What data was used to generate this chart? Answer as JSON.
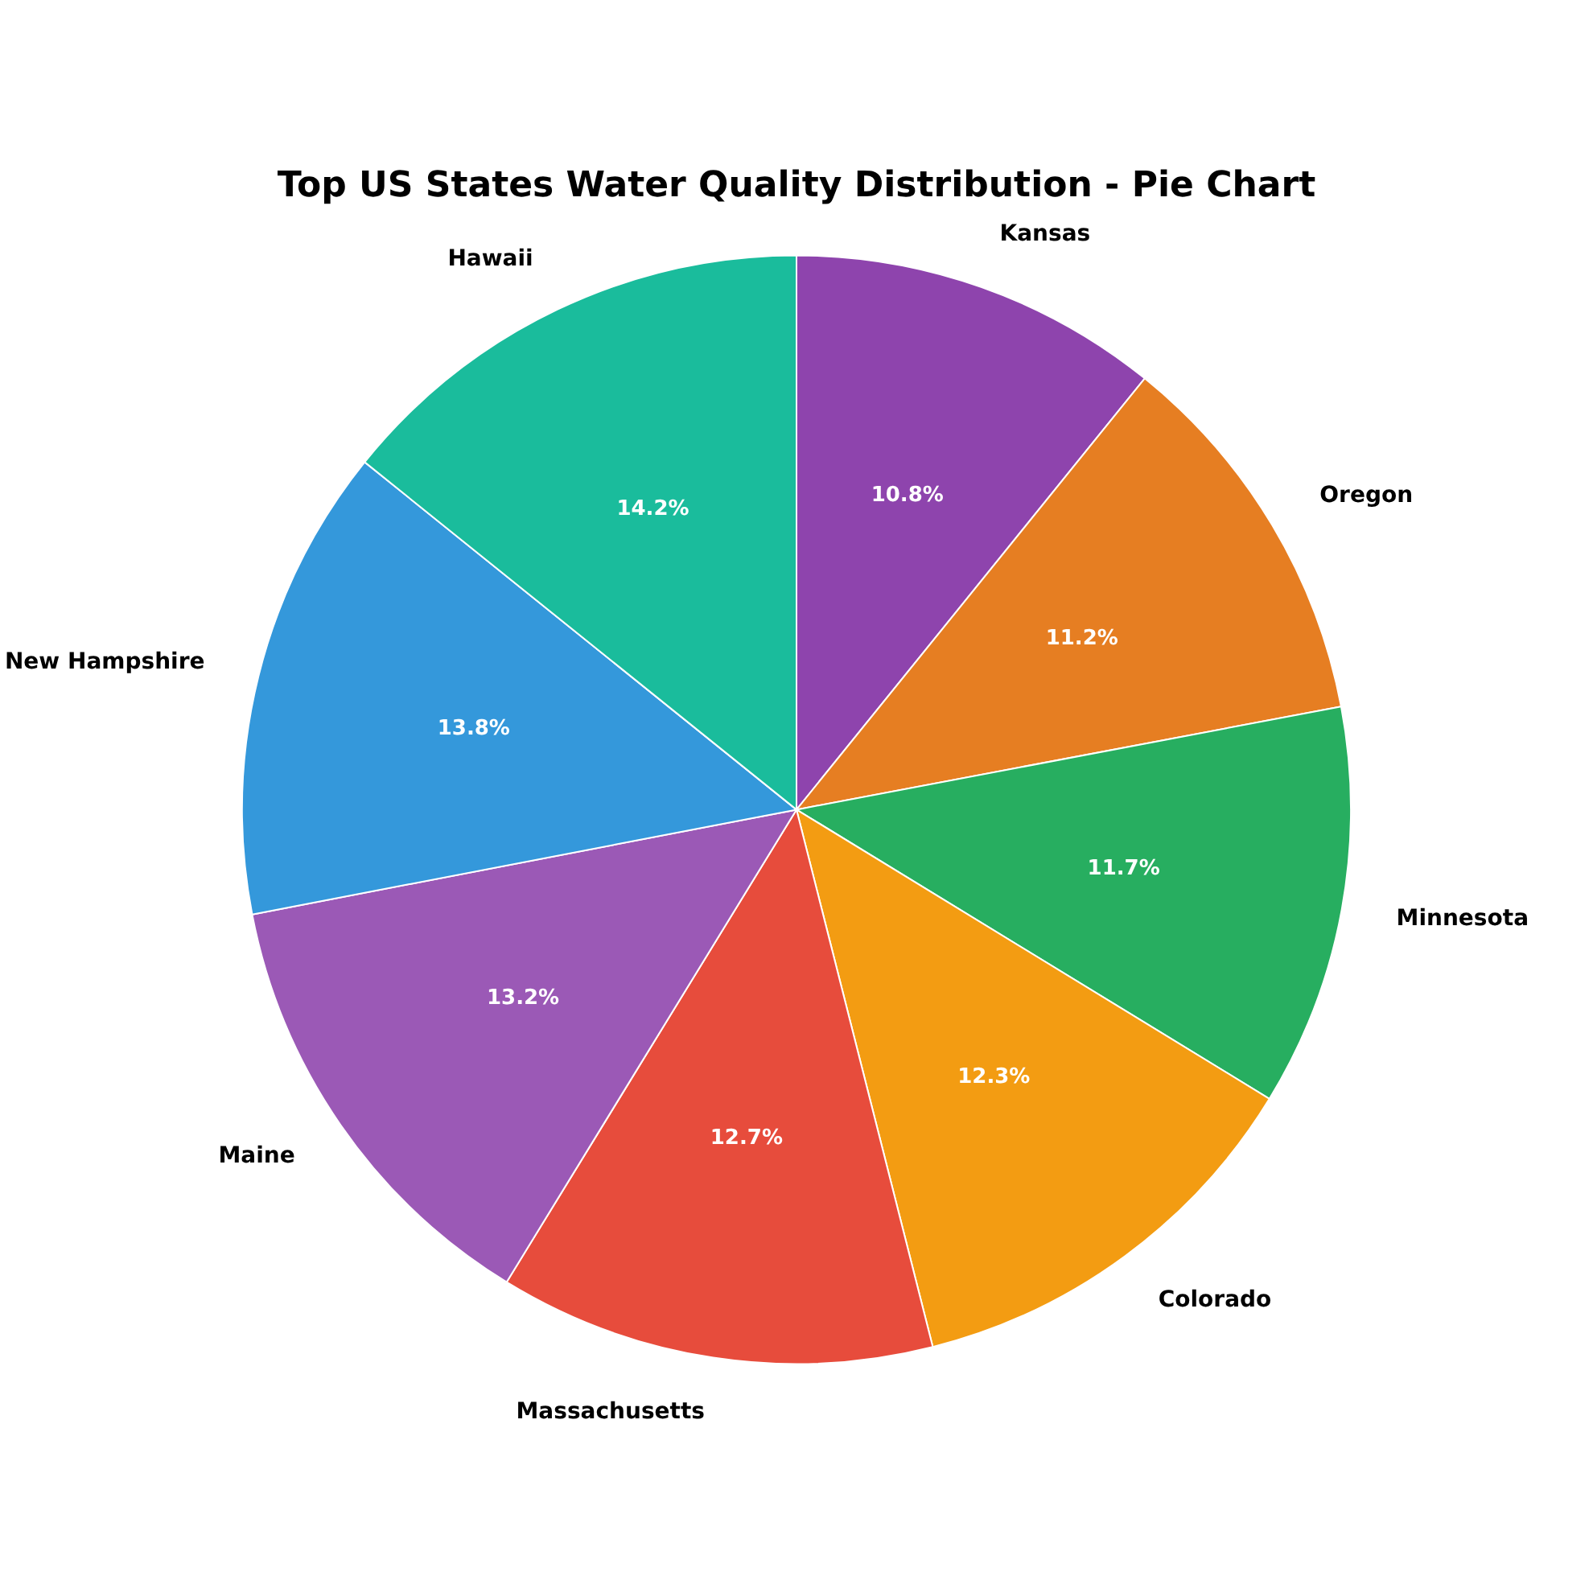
{
  "chart_data": {
    "type": "pie",
    "title": "Top US States Water Quality Distribution - Pie Chart",
    "categories": [
      "Hawaii",
      "New Hampshire",
      "Maine",
      "Massachusetts",
      "Colorado",
      "Minnesota",
      "Oregon",
      "Kansas"
    ],
    "values": [
      14.2,
      13.8,
      13.2,
      12.7,
      12.3,
      11.7,
      11.2,
      10.8
    ],
    "value_labels": [
      "14.2%",
      "13.8%",
      "13.2%",
      "12.7%",
      "12.3%",
      "11.7%",
      "11.2%",
      "10.8%"
    ],
    "colors": [
      "#1abc9c",
      "#3498db",
      "#9b59b6",
      "#e74c3c",
      "#f39c12",
      "#27ae60",
      "#e67e22",
      "#8e44ad"
    ],
    "legend": false
  }
}
